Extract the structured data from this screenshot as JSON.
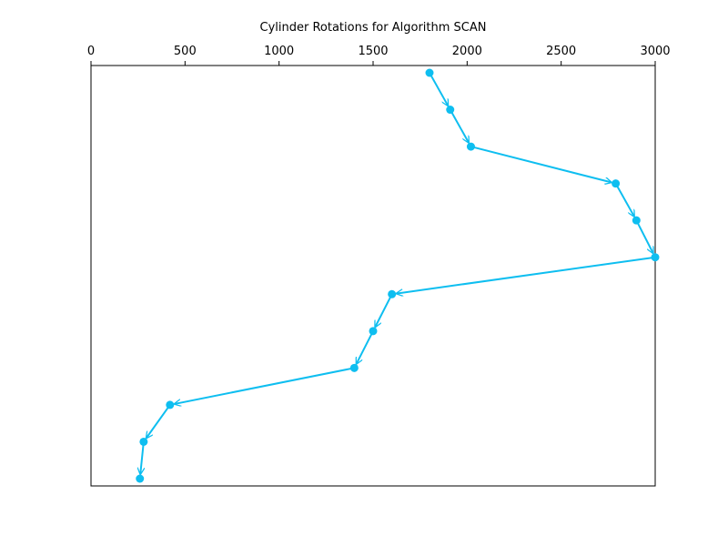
{
  "chart_data": {
    "type": "line",
    "title": "Cylinder Rotations for Algorithm SCAN",
    "xlabel": "",
    "ylabel": "",
    "x_axis_position": "top",
    "xlim": [
      0,
      3000
    ],
    "x_ticks": [
      0,
      500,
      1000,
      1500,
      2000,
      2500,
      3000
    ],
    "y_axis": "request order (top to bottom), no tick labels",
    "grid": false,
    "legend": "none",
    "series": [
      {
        "color": "#0ebef0",
        "marker": "circle",
        "arrows": true,
        "x": [
          1800,
          1910,
          2020,
          2790,
          2900,
          3000,
          1600,
          1500,
          1400,
          420,
          280,
          260
        ],
        "step": [
          1,
          2,
          3,
          4,
          5,
          6,
          7,
          8,
          9,
          10,
          11,
          12
        ]
      }
    ]
  }
}
